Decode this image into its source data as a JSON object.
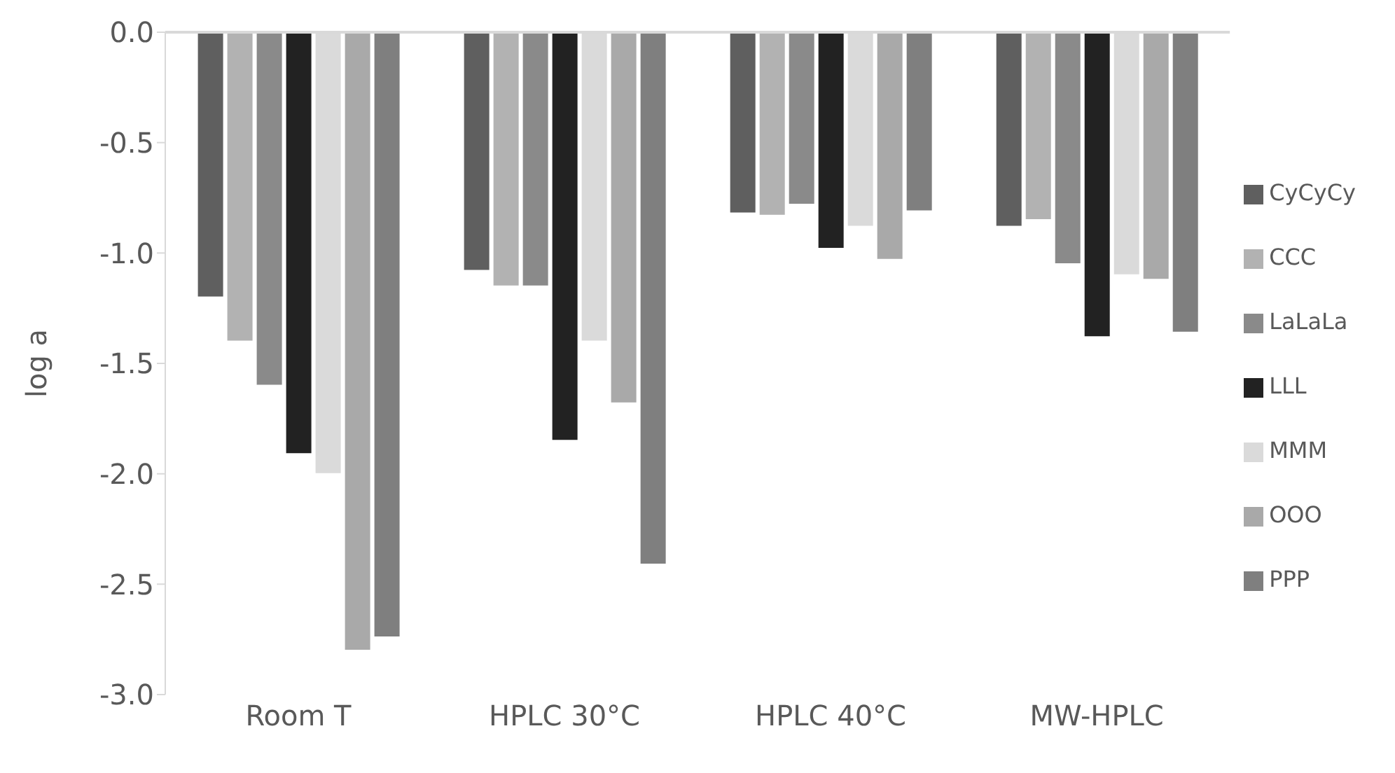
{
  "chart_data": {
    "type": "bar",
    "ylabel": "log a",
    "categories": [
      "Room T",
      "HPLC 30°C",
      "HPLC 40°C",
      "MW-HPLC"
    ],
    "series": [
      {
        "name": "CyCyCy",
        "color": "#5f5f5f",
        "values": [
          -1.2,
          -1.08,
          -0.82,
          -0.88
        ]
      },
      {
        "name": "CCC",
        "color": "#b2b2b2",
        "values": [
          -1.4,
          -1.15,
          -0.83,
          -0.85
        ]
      },
      {
        "name": "LaLaLa",
        "color": "#8a8a8a",
        "values": [
          -1.6,
          -1.15,
          -0.78,
          -1.05
        ]
      },
      {
        "name": "LLL",
        "color": "#222222",
        "values": [
          -1.91,
          -1.85,
          -0.98,
          -1.38
        ]
      },
      {
        "name": "MMM",
        "color": "#dadada",
        "values": [
          -2.0,
          -1.4,
          -0.88,
          -1.1
        ]
      },
      {
        "name": "OOO",
        "color": "#a9a9a9",
        "values": [
          -2.8,
          -1.68,
          -1.03,
          -1.12
        ]
      },
      {
        "name": "PPP",
        "color": "#7f7f7f",
        "values": [
          -2.74,
          -2.41,
          -0.81,
          -1.36
        ]
      }
    ],
    "ylim": [
      -3,
      0
    ],
    "yticks": [
      {
        "value": 0,
        "label": "0.0"
      },
      {
        "value": -0.5,
        "label": "-0.5"
      },
      {
        "value": -1,
        "label": "-1.0"
      },
      {
        "value": -1.5,
        "label": "-1.5"
      },
      {
        "value": -2,
        "label": "-2.0"
      },
      {
        "value": -2.5,
        "label": "-2.5"
      },
      {
        "value": -3,
        "label": "-3.0"
      }
    ],
    "grid": false,
    "legend": "right"
  }
}
